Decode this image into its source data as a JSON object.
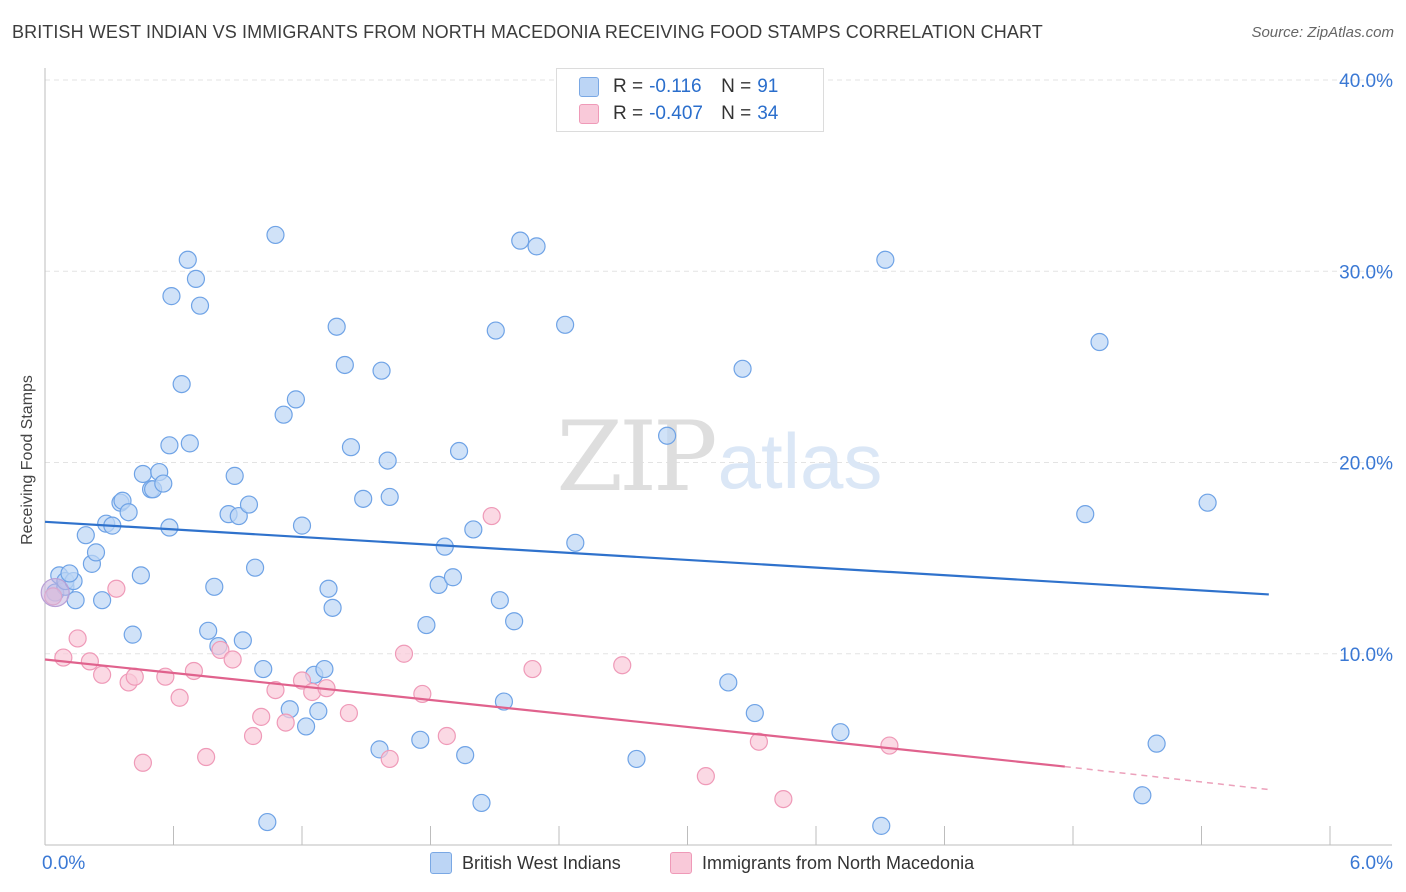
{
  "title": "BRITISH WEST INDIAN VS IMMIGRANTS FROM NORTH MACEDONIA RECEIVING FOOD STAMPS CORRELATION CHART",
  "source": "Source: ZipAtlas.com",
  "watermark": {
    "zip": "ZIP",
    "atlas": "atlas"
  },
  "legend": {
    "rows": [
      {
        "r_label": "R =",
        "r_value": "-0.116",
        "n_label": "N =",
        "n_value": "91",
        "color": "#a9c9f3"
      },
      {
        "r_label": "R =",
        "r_value": "-0.407",
        "n_label": "N =",
        "n_value": "34",
        "color": "#f7bfd0"
      }
    ]
  },
  "bottom_legend": [
    "British West Indians",
    "Immigrants from North Macedonia"
  ],
  "chart_data": {
    "type": "scatter",
    "title": "BRITISH WEST INDIAN VS IMMIGRANTS FROM NORTH MACEDONIA RECEIVING FOOD STAMPS CORRELATION CHART",
    "xlabel": "",
    "ylabel": "Receiving Food Stamps",
    "xlim": [
      0,
      6.3
    ],
    "ylim": [
      0,
      40
    ],
    "x_tick_labels": [
      "0.0%",
      "6.0%"
    ],
    "y_tick_labels": [
      "10.0%",
      "20.0%",
      "30.0%",
      "40.0%"
    ],
    "y_ticks": [
      10,
      20,
      30,
      40
    ],
    "grid": true,
    "legend_placement": "top-center",
    "series": [
      {
        "name": "British West Indians",
        "color": "#6fa3e6",
        "fill": "#bcd5f5",
        "trend": {
          "x": [
            0,
            6.0
          ],
          "y": [
            16.9,
            13.1
          ],
          "color": "#2f72cc"
        },
        "points": [
          [
            0.05,
            13.2
          ],
          [
            0.07,
            14.1
          ],
          [
            0.1,
            13.5
          ],
          [
            0.1,
            13.8
          ],
          [
            0.14,
            13.8
          ],
          [
            0.15,
            12.8
          ],
          [
            0.2,
            16.2
          ],
          [
            0.23,
            14.7
          ],
          [
            0.25,
            15.3
          ],
          [
            0.28,
            12.8
          ],
          [
            0.3,
            16.8
          ],
          [
            0.33,
            16.7
          ],
          [
            0.37,
            17.9
          ],
          [
            0.38,
            18.0
          ],
          [
            0.41,
            17.4
          ],
          [
            0.43,
            11.0
          ],
          [
            0.47,
            14.1
          ],
          [
            0.48,
            19.4
          ],
          [
            0.52,
            18.6
          ],
          [
            0.53,
            18.6
          ],
          [
            0.56,
            19.5
          ],
          [
            0.58,
            18.9
          ],
          [
            0.61,
            16.6
          ],
          [
            0.61,
            20.9
          ],
          [
            0.62,
            28.7
          ],
          [
            0.67,
            24.1
          ],
          [
            0.7,
            30.6
          ],
          [
            0.71,
            21.0
          ],
          [
            0.74,
            29.6
          ],
          [
            0.76,
            28.2
          ],
          [
            0.8,
            11.2
          ],
          [
            0.83,
            13.5
          ],
          [
            0.85,
            10.4
          ],
          [
            0.9,
            17.3
          ],
          [
            0.93,
            19.3
          ],
          [
            0.95,
            17.2
          ],
          [
            0.97,
            10.7
          ],
          [
            1.0,
            17.8
          ],
          [
            1.03,
            14.5
          ],
          [
            1.07,
            9.2
          ],
          [
            1.09,
            1.2
          ],
          [
            1.13,
            31.9
          ],
          [
            1.17,
            22.5
          ],
          [
            1.2,
            7.1
          ],
          [
            1.23,
            23.3
          ],
          [
            1.26,
            16.7
          ],
          [
            1.28,
            6.2
          ],
          [
            1.32,
            8.9
          ],
          [
            1.34,
            7.0
          ],
          [
            1.37,
            9.2
          ],
          [
            1.39,
            13.4
          ],
          [
            1.41,
            12.4
          ],
          [
            1.43,
            27.1
          ],
          [
            1.47,
            25.1
          ],
          [
            1.5,
            20.8
          ],
          [
            1.56,
            18.1
          ],
          [
            1.64,
            5.0
          ],
          [
            1.65,
            24.8
          ],
          [
            1.68,
            20.1
          ],
          [
            1.69,
            18.2
          ],
          [
            1.84,
            5.5
          ],
          [
            1.87,
            11.5
          ],
          [
            1.93,
            13.6
          ],
          [
            1.96,
            15.6
          ],
          [
            2.0,
            14.0
          ],
          [
            2.03,
            20.6
          ],
          [
            2.06,
            4.7
          ],
          [
            2.1,
            16.5
          ],
          [
            2.14,
            2.2
          ],
          [
            2.21,
            26.9
          ],
          [
            2.23,
            12.8
          ],
          [
            2.25,
            7.5
          ],
          [
            2.3,
            11.7
          ],
          [
            2.33,
            31.6
          ],
          [
            2.41,
            31.3
          ],
          [
            2.55,
            27.2
          ],
          [
            2.6,
            15.8
          ],
          [
            2.9,
            4.5
          ],
          [
            3.05,
            21.4
          ],
          [
            3.35,
            8.5
          ],
          [
            3.42,
            24.9
          ],
          [
            3.48,
            6.9
          ],
          [
            3.9,
            5.9
          ],
          [
            4.1,
            1.0
          ],
          [
            4.12,
            30.6
          ],
          [
            5.1,
            17.3
          ],
          [
            5.17,
            26.3
          ],
          [
            5.38,
            2.6
          ],
          [
            5.45,
            5.3
          ],
          [
            5.7,
            17.9
          ],
          [
            0.12,
            14.2
          ]
        ]
      },
      {
        "name": "Immigrants from North Macedonia",
        "color": "#ef9ab8",
        "fill": "#f9c9d9",
        "trend": {
          "x": [
            0,
            5.0
          ],
          "y": [
            9.7,
            4.1
          ],
          "color": "#e0628d"
        },
        "trend_dashed": {
          "x": [
            5.0,
            6.0
          ],
          "y": [
            4.1,
            2.9
          ]
        },
        "points": [
          [
            0.04,
            13.0
          ],
          [
            0.09,
            9.8
          ],
          [
            0.16,
            10.8
          ],
          [
            0.22,
            9.6
          ],
          [
            0.28,
            8.9
          ],
          [
            0.35,
            13.4
          ],
          [
            0.41,
            8.5
          ],
          [
            0.44,
            8.8
          ],
          [
            0.48,
            4.3
          ],
          [
            0.59,
            8.8
          ],
          [
            0.66,
            7.7
          ],
          [
            0.73,
            9.1
          ],
          [
            0.79,
            4.6
          ],
          [
            0.86,
            10.2
          ],
          [
            0.92,
            9.7
          ],
          [
            1.02,
            5.7
          ],
          [
            1.06,
            6.7
          ],
          [
            1.13,
            8.1
          ],
          [
            1.18,
            6.4
          ],
          [
            1.26,
            8.6
          ],
          [
            1.31,
            8.0
          ],
          [
            1.38,
            8.2
          ],
          [
            1.49,
            6.9
          ],
          [
            1.69,
            4.5
          ],
          [
            1.76,
            10.0
          ],
          [
            1.85,
            7.9
          ],
          [
            1.97,
            5.7
          ],
          [
            2.19,
            17.2
          ],
          [
            2.39,
            9.2
          ],
          [
            2.83,
            9.4
          ],
          [
            3.24,
            3.6
          ],
          [
            3.5,
            5.4
          ],
          [
            3.62,
            2.4
          ],
          [
            4.14,
            5.2
          ]
        ]
      }
    ]
  }
}
